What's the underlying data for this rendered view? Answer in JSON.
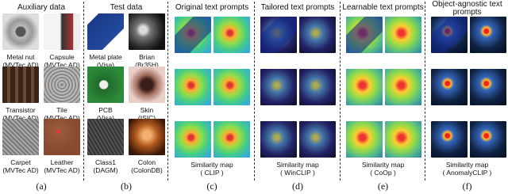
{
  "columns": [
    {
      "header": "Auxiliary data",
      "label": "(a)",
      "images": [
        {
          "name": "Metal nut",
          "source": "(MVTec AD)"
        },
        {
          "name": "Capsule",
          "source": "(MVTec AD)"
        },
        {
          "name": "Transistor",
          "source": "(MVTec AD)"
        },
        {
          "name": "Tile",
          "source": "(MVTec AD)"
        },
        {
          "name": "Carpet",
          "source": "(MVTec AD)"
        },
        {
          "name": "Leather",
          "source": "(MVTec AD)"
        }
      ]
    },
    {
      "header": "Test data",
      "label": "(b)",
      "images": [
        {
          "name": "Metal plate",
          "source": "(Visa)"
        },
        {
          "name": "Brian",
          "source": "(Br35H)"
        },
        {
          "name": "PCB",
          "source": "(Visa)"
        },
        {
          "name": "Skin",
          "source": "(ISIC)"
        },
        {
          "name": "Class1",
          "source": "(DAGM)"
        },
        {
          "name": "Colon",
          "source": "(ColonDB)"
        }
      ]
    },
    {
      "header": "Original  text prompts",
      "caption": "Similarity map",
      "method": "( CLIP )",
      "label": "(c)"
    },
    {
      "header": "Tailored text prompts",
      "caption": "Similarity map",
      "method": "( WinCLIP )",
      "label": "(d)"
    },
    {
      "header": "Learnable text prompts",
      "caption": "Similarity map",
      "method": "( CoOp )",
      "label": "(e)"
    },
    {
      "header": "Object-agnostic text prompts",
      "caption": "Similarity map",
      "method": "( AnomalyCLIP )",
      "label": "(f)"
    }
  ]
}
